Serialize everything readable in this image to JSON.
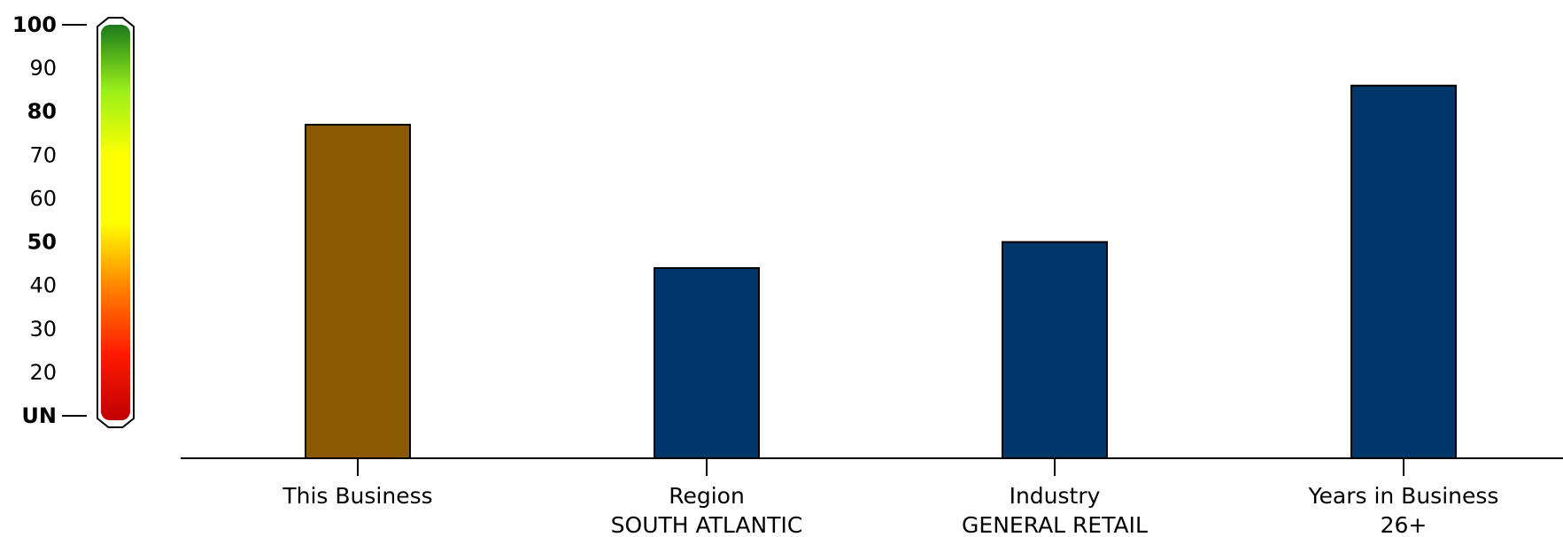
{
  "chart_data": {
    "type": "bar",
    "title": "",
    "xlabel": "",
    "ylabel": "",
    "ylim": [
      10,
      100
    ],
    "grid": false,
    "legend": "none",
    "scale_ticks": [
      {
        "value": 100,
        "label": "100",
        "bold": true,
        "marker": true
      },
      {
        "value": 90,
        "label": "90",
        "bold": false,
        "marker": false
      },
      {
        "value": 80,
        "label": "80",
        "bold": true,
        "marker": false
      },
      {
        "value": 70,
        "label": "70",
        "bold": false,
        "marker": false
      },
      {
        "value": 60,
        "label": "60",
        "bold": false,
        "marker": false
      },
      {
        "value": 50,
        "label": "50",
        "bold": true,
        "marker": false
      },
      {
        "value": 40,
        "label": "40",
        "bold": false,
        "marker": false
      },
      {
        "value": 30,
        "label": "30",
        "bold": false,
        "marker": false
      },
      {
        "value": 20,
        "label": "20",
        "bold": false,
        "marker": false
      },
      {
        "value": 10,
        "label": "UN",
        "bold": true,
        "marker": true
      }
    ],
    "scale_gradient": [
      "#1a7a1a",
      "#9bf01a",
      "#ffff00",
      "#ffff00",
      "#ff8000",
      "#ff1a00",
      "#c00000"
    ],
    "categories": [
      {
        "line1": "This Business",
        "line2": ""
      },
      {
        "line1": "Region",
        "line2": "SOUTH ATLANTIC"
      },
      {
        "line1": "Industry",
        "line2": "GENERAL RETAIL"
      },
      {
        "line1": "Years in Business",
        "line2": "26+"
      }
    ],
    "values": [
      77,
      44,
      50,
      86
    ],
    "colors": [
      "#8b5a00",
      "#00376b",
      "#00376b",
      "#00376b"
    ]
  }
}
